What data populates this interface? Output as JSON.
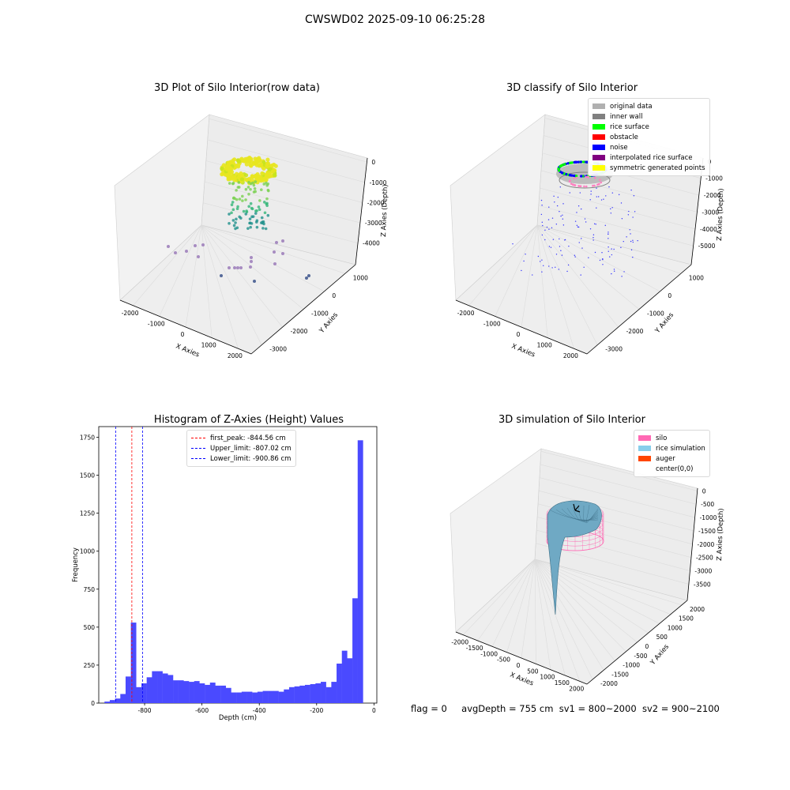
{
  "suptitle": "CWSWD02 2025-09-10 06:25:28",
  "panels": {
    "raw": {
      "title": "3D Plot of Silo Interior(row data)",
      "xlabel": "X Axies",
      "ylabel": "Y Axies",
      "zlabel": "Z Axies (Depth)",
      "xticks": [
        "-2000",
        "-1000",
        "0",
        "1000",
        "2000"
      ],
      "yticks": [
        "1000",
        "0",
        "-1000",
        "-2000",
        "-3000"
      ],
      "zticks": [
        "0",
        "-1000",
        "-2000",
        "-3000",
        "-4000"
      ]
    },
    "classify": {
      "title": "3D classify of Silo Interior",
      "xlabel": "X Axies",
      "ylabel": "Y Axies",
      "zlabel": "Z Axies (Depth)",
      "xticks": [
        "-2000",
        "-1000",
        "0",
        "1000",
        "2000"
      ],
      "yticks": [
        "1000",
        "0",
        "-1000",
        "-2000",
        "-3000"
      ],
      "zticks": [
        "0",
        "-1000",
        "-2000",
        "-3000",
        "-4000",
        "-5000"
      ],
      "legend": [
        {
          "label": "original data",
          "color": "#b0b0b0"
        },
        {
          "label": "inner wall",
          "color": "#808080"
        },
        {
          "label": "rice surface",
          "color": "#00ff00"
        },
        {
          "label": "obstacle",
          "color": "#ff0000"
        },
        {
          "label": "noise",
          "color": "#0000ff"
        },
        {
          "label": "interpolated rice surface",
          "color": "#800080"
        },
        {
          "label": "symmetric generated points",
          "color": "#ffff00"
        }
      ]
    },
    "simulation": {
      "title": "3D simulation of Silo Interior",
      "xlabel": "X Axies",
      "ylabel": "Y Axies",
      "zlabel": "Z Axies (Depth)",
      "xticks": [
        "-2000",
        "-1500",
        "-1000",
        "-500",
        "0",
        "500",
        "1000",
        "1500",
        "2000"
      ],
      "yticks": [
        "2000",
        "1500",
        "1000",
        "500",
        "0",
        "-500",
        "-1000",
        "-1500",
        "-2000"
      ],
      "zticks": [
        "0",
        "-500",
        "-1000",
        "-1500",
        "-2000",
        "-2500",
        "-3000",
        "-3500"
      ],
      "legend": [
        {
          "label": "silo",
          "color": "#ff69b4"
        },
        {
          "label": "rice simulation",
          "color": "#87ceeb"
        },
        {
          "label": "auger",
          "color": "#ff4500"
        },
        {
          "label": "center(0,0)",
          "color": ""
        }
      ]
    }
  },
  "chart_data": {
    "type": "bar",
    "title": "Histogram of Z-Axies (Height) Values",
    "xlabel": "Depth (cm)",
    "ylabel": "Frequency",
    "xlim": [
      -960,
      10
    ],
    "ylim": [
      0,
      1820
    ],
    "xticks": [
      -800,
      -600,
      -400,
      -200,
      0
    ],
    "yticks": [
      0,
      250,
      500,
      750,
      1000,
      1250,
      1500,
      1750
    ],
    "bin_width": 18.4,
    "bin_start": -940,
    "bar_color": "#4a4aff",
    "values": [
      10,
      20,
      30,
      60,
      175,
      530,
      105,
      130,
      170,
      210,
      210,
      195,
      185,
      150,
      150,
      145,
      140,
      145,
      130,
      120,
      135,
      115,
      115,
      100,
      70,
      70,
      75,
      75,
      70,
      75,
      80,
      80,
      80,
      75,
      90,
      105,
      110,
      115,
      120,
      125,
      130,
      140,
      105,
      140,
      260,
      345,
      295,
      690,
      1730
    ],
    "lines": [
      {
        "label": "first_peak: -844.56 cm",
        "x": -844.56,
        "color": "#ff0000"
      },
      {
        "label": "Upper_limit: -807.02 cm",
        "x": -807.02,
        "color": "#0000ff"
      },
      {
        "label": "Lower_limit: -900.86 cm",
        "x": -900.86,
        "color": "#0000ff"
      }
    ],
    "legend_position": "upper center"
  },
  "footer": {
    "flag": "flag = 0",
    "avgDepth": "avgDepth = 755 cm",
    "sv1": "sv1 = 800~2000",
    "sv2": "sv2 = 900~2100"
  }
}
